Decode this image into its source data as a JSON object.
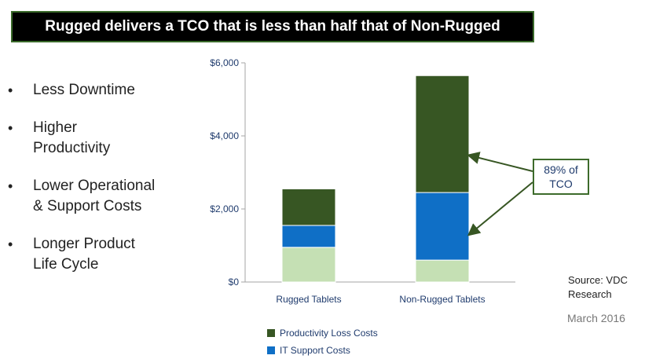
{
  "header": {
    "title": "Rugged delivers a TCO that is less than half that of Non-Rugged"
  },
  "bullets": [
    {
      "text": "Less Downtime"
    },
    {
      "text": "Higher\nProductivity"
    },
    {
      "text": "Lower Operational\n& Support Costs"
    },
    {
      "text": "Longer Product\nLife Cycle"
    }
  ],
  "callout": {
    "line1": "89% of",
    "line2": "TCO"
  },
  "source": {
    "line1": "Source: VDC",
    "line2": "Research",
    "date": "March 2016"
  },
  "colors": {
    "productivity": "#375623",
    "it_support": "#0f6fc6",
    "third": "#c5e0b4",
    "axis_text": "#1f3b6d",
    "axis_line": "#a6a6a6"
  },
  "chart_data": {
    "type": "bar",
    "stacked": true,
    "categories": [
      "Rugged Tablets",
      "Non-Rugged Tablets"
    ],
    "series": [
      {
        "name": "",
        "values": [
          950,
          600
        ]
      },
      {
        "name": "IT Support Costs",
        "values": [
          600,
          1850
        ]
      },
      {
        "name": "Productivity Loss Costs",
        "values": [
          1000,
          3200
        ]
      }
    ],
    "ylim": [
      0,
      6000
    ],
    "yticks": [
      0,
      2000,
      4000,
      6000
    ],
    "ytick_labels": [
      "$0",
      "$2,000",
      "$4,000",
      "$6,000"
    ],
    "xlabel": "",
    "ylabel": "",
    "legend": [
      "Productivity Loss Costs",
      "IT Support Costs"
    ],
    "legend_position": "bottom",
    "grid": false
  }
}
